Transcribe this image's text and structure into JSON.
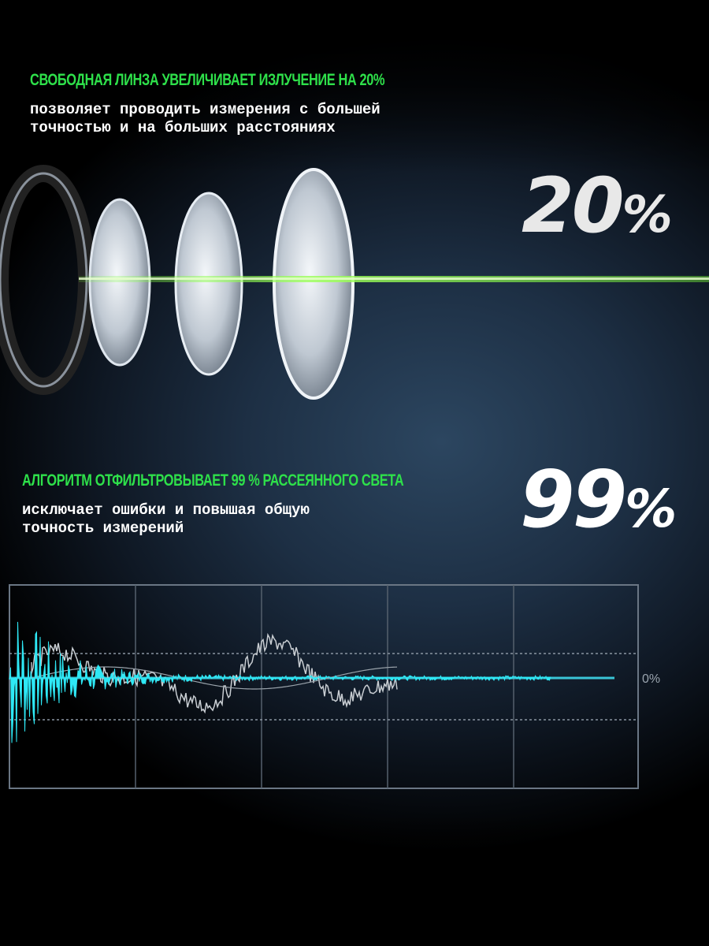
{
  "section1": {
    "heading": "СВОБОДНАЯ ЛИНЗА УВЕЛИЧИВАЕТ ИЗЛУЧЕНИЕ НА 20%",
    "text": "позволяет проводить измерения с большей\nточностью и на больших расстояниях",
    "big_value": "20",
    "big_unit": "%"
  },
  "section2": {
    "heading": "АЛГОРИТМ ОТФИЛЬТРОВЫВАЕТ 99 % РАССЕЯННОГО СВЕТА",
    "text": "исключает ошибки и повышая общую\nточность измерений",
    "big_value": "99",
    "big_unit": "%"
  },
  "graph": {
    "zero_label": "0%"
  },
  "colors": {
    "accent_green": "#2ee04a",
    "beam": "#7dff3a",
    "signal": "#2ee8f5"
  }
}
